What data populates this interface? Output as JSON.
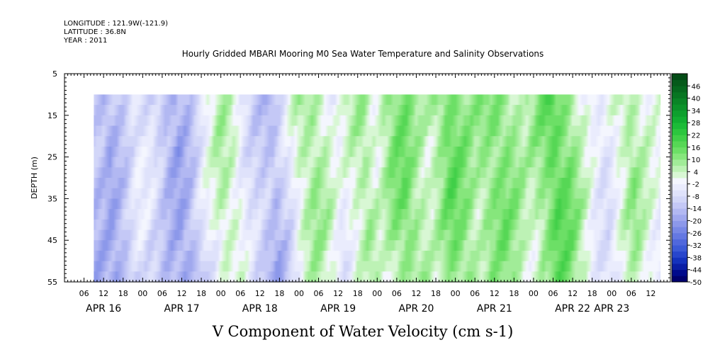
{
  "header": {
    "longitude": "LONGITUDE : 121.9W(-121.9)",
    "latitude": "LATITUDE : 36.8N",
    "year": "YEAR : 2011"
  },
  "chart_data": {
    "type": "heatmap",
    "title": "Hourly Gridded MBARI Mooring M0 Sea Water Temperature and Salinity Observations",
    "xlabel": "V Component of Water Velocity (cm s-1)",
    "ylabel": "DEPTH (m)",
    "x_unit": "hours since APR 16 00:00, 2011",
    "x_range_hours": [
      -18,
      168
    ],
    "data_x_range_hours": [
      -9,
      165
    ],
    "y_range_m": [
      5,
      55
    ],
    "y_reversed": true,
    "data_depth_range_m": [
      10,
      55
    ],
    "y_ticks": [
      5,
      15,
      25,
      35,
      45,
      55
    ],
    "x_hour_ticks": [
      {
        "h": -12,
        "label": "06"
      },
      {
        "h": -6,
        "label": "12"
      },
      {
        "h": 0,
        "label": "18"
      },
      {
        "h": 6,
        "label": "00"
      },
      {
        "h": 12,
        "label": "06"
      },
      {
        "h": 18,
        "label": "12"
      },
      {
        "h": 24,
        "label": "18"
      },
      {
        "h": 30,
        "label": "00"
      },
      {
        "h": 36,
        "label": "06"
      },
      {
        "h": 42,
        "label": "12"
      },
      {
        "h": 48,
        "label": "18"
      },
      {
        "h": 54,
        "label": "00"
      },
      {
        "h": 60,
        "label": "06"
      },
      {
        "h": 66,
        "label": "12"
      },
      {
        "h": 72,
        "label": "18"
      },
      {
        "h": 78,
        "label": "00"
      },
      {
        "h": 84,
        "label": "06"
      },
      {
        "h": 90,
        "label": "12"
      },
      {
        "h": 96,
        "label": "18"
      },
      {
        "h": 102,
        "label": "00"
      },
      {
        "h": 108,
        "label": "06"
      },
      {
        "h": 114,
        "label": "12"
      },
      {
        "h": 120,
        "label": "18"
      },
      {
        "h": 126,
        "label": "00"
      },
      {
        "h": 132,
        "label": "06"
      },
      {
        "h": 138,
        "label": "12"
      },
      {
        "h": 144,
        "label": "18"
      },
      {
        "h": 150,
        "label": "00"
      },
      {
        "h": 156,
        "label": "06"
      },
      {
        "h": 162,
        "label": "12"
      }
    ],
    "x_day_labels": [
      {
        "h": -6,
        "label": "APR 16"
      },
      {
        "h": 18,
        "label": "APR 17"
      },
      {
        "h": 42,
        "label": "APR 18"
      },
      {
        "h": 66,
        "label": "APR 19"
      },
      {
        "h": 90,
        "label": "APR 20"
      },
      {
        "h": 114,
        "label": "APR 21"
      },
      {
        "h": 138,
        "label": "APR 22"
      },
      {
        "h": 150,
        "label": "APR 23"
      }
    ],
    "colorbar": {
      "labels": [
        "46",
        "40",
        "34",
        "28",
        "22",
        "16",
        "10",
        "4",
        "-2",
        "-8",
        "-14",
        "-20",
        "-26",
        "-32",
        "-38",
        "-44",
        "-50"
      ],
      "min": -50,
      "max": 52,
      "step": 3,
      "colors_low_to_high": [
        "#00006e",
        "#000a8c",
        "#0a1ea5",
        "#1432bd",
        "#2846cc",
        "#3c5ad6",
        "#5068dc",
        "#6478e2",
        "#7888e6",
        "#8c98ea",
        "#a0a8ee",
        "#b2b8f2",
        "#c4c8f6",
        "#d2d6f8",
        "#dfe2fb",
        "#eaecfd",
        "#f4f6fe",
        "#d8f7d4",
        "#bdf2b5",
        "#a1ec98",
        "#86e67c",
        "#6cdf66",
        "#56d755",
        "#40cf48",
        "#2cc63e",
        "#1cbb38",
        "#12ae32",
        "#0ea02e",
        "#0c922a",
        "#0a8426",
        "#087622",
        "#06681e",
        "#055a1a",
        "#044c16"
      ]
    },
    "v_profile_by_hour": [
      {
        "h": -9,
        "v": -14
      },
      {
        "h": -5,
        "v": -17
      },
      {
        "h": -1,
        "v": -12
      },
      {
        "h": 3,
        "v": -4
      },
      {
        "h": 8,
        "v": -7
      },
      {
        "h": 12,
        "v": -14
      },
      {
        "h": 16,
        "v": -18
      },
      {
        "h": 20,
        "v": -13
      },
      {
        "h": 24,
        "v": -3
      },
      {
        "h": 29,
        "v": 6
      },
      {
        "h": 33,
        "v": 3
      },
      {
        "h": 37,
        "v": -6
      },
      {
        "h": 41,
        "v": -11
      },
      {
        "h": 45,
        "v": -15
      },
      {
        "h": 49,
        "v": -7
      },
      {
        "h": 53,
        "v": 4
      },
      {
        "h": 57,
        "v": 9
      },
      {
        "h": 61,
        "v": 5
      },
      {
        "h": 65,
        "v": -3
      },
      {
        "h": 69,
        "v": 3
      },
      {
        "h": 73,
        "v": 8
      },
      {
        "h": 77,
        "v": 2
      },
      {
        "h": 81,
        "v": 10
      },
      {
        "h": 85,
        "v": 14
      },
      {
        "h": 89,
        "v": 8
      },
      {
        "h": 93,
        "v": 4
      },
      {
        "h": 96,
        "v": 9
      },
      {
        "h": 99,
        "v": 15
      },
      {
        "h": 103,
        "v": 12
      },
      {
        "h": 107,
        "v": 7
      },
      {
        "h": 111,
        "v": 11
      },
      {
        "h": 115,
        "v": 13
      },
      {
        "h": 119,
        "v": 9
      },
      {
        "h": 123,
        "v": 4
      },
      {
        "h": 127,
        "v": 10
      },
      {
        "h": 131,
        "v": 17
      },
      {
        "h": 135,
        "v": 14
      },
      {
        "h": 139,
        "v": 6
      },
      {
        "h": 143,
        "v": -3
      },
      {
        "h": 147,
        "v": -6
      },
      {
        "h": 151,
        "v": 2
      },
      {
        "h": 155,
        "v": 9
      },
      {
        "h": 159,
        "v": 3
      },
      {
        "h": 163,
        "v": -1
      }
    ]
  }
}
